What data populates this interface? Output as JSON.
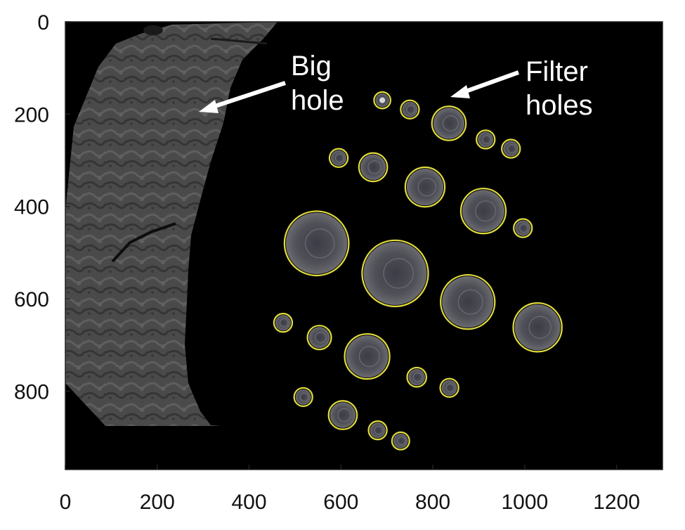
{
  "plot": {
    "x_ticks": [
      {
        "value": 0,
        "label": "0"
      },
      {
        "value": 200,
        "label": "200"
      },
      {
        "value": 400,
        "label": "400"
      },
      {
        "value": 600,
        "label": "600"
      },
      {
        "value": 800,
        "label": "800"
      },
      {
        "value": 1000,
        "label": "1000"
      },
      {
        "value": 1200,
        "label": "1200"
      }
    ],
    "y_ticks": [
      {
        "value": 0,
        "label": "0"
      },
      {
        "value": 200,
        "label": "200"
      },
      {
        "value": 400,
        "label": "400"
      },
      {
        "value": 600,
        "label": "600"
      },
      {
        "value": 800,
        "label": "800"
      }
    ],
    "x_range": [
      0,
      1300
    ],
    "y_range": [
      0,
      970
    ],
    "y_inverted": true,
    "image_background_color": "#000000",
    "circle_color": "#e1dc3c",
    "arrow_color": "#ffffff"
  },
  "annotations": {
    "big_hole": {
      "line1": "Big",
      "line2": "hole"
    },
    "filter_holes": {
      "line1": "Filter",
      "line2": "holes"
    }
  },
  "detected_holes": [
    {
      "cx": 690,
      "cy": 170,
      "r": 18
    },
    {
      "cx": 750,
      "cy": 190,
      "r": 20
    },
    {
      "cx": 835,
      "cy": 220,
      "r": 37
    },
    {
      "cx": 915,
      "cy": 255,
      "r": 20
    },
    {
      "cx": 970,
      "cy": 275,
      "r": 20
    },
    {
      "cx": 595,
      "cy": 295,
      "r": 20
    },
    {
      "cx": 670,
      "cy": 315,
      "r": 31
    },
    {
      "cx": 783,
      "cy": 358,
      "r": 43
    },
    {
      "cx": 910,
      "cy": 410,
      "r": 49
    },
    {
      "cx": 996,
      "cy": 447,
      "r": 20
    },
    {
      "cx": 547,
      "cy": 480,
      "r": 70
    },
    {
      "cx": 718,
      "cy": 545,
      "r": 72
    },
    {
      "cx": 876,
      "cy": 607,
      "r": 59
    },
    {
      "cx": 1028,
      "cy": 662,
      "r": 53
    },
    {
      "cx": 474,
      "cy": 652,
      "r": 20
    },
    {
      "cx": 553,
      "cy": 684,
      "r": 26
    },
    {
      "cx": 657,
      "cy": 725,
      "r": 49
    },
    {
      "cx": 765,
      "cy": 770,
      "r": 21
    },
    {
      "cx": 836,
      "cy": 793,
      "r": 20
    },
    {
      "cx": 518,
      "cy": 813,
      "r": 20
    },
    {
      "cx": 604,
      "cy": 852,
      "r": 31
    },
    {
      "cx": 680,
      "cy": 885,
      "r": 20
    },
    {
      "cx": 730,
      "cy": 908,
      "r": 19
    }
  ]
}
